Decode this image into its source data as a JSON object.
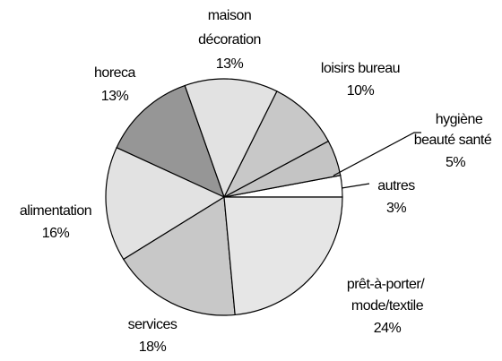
{
  "chart_data": {
    "type": "pie",
    "categories": [
      [
        "autres"
      ],
      [
        "hygiène",
        "beauté santé"
      ],
      [
        "loisirs bureau"
      ],
      [
        "maison",
        "décoration"
      ],
      [
        "horeca"
      ],
      [
        "alimentation"
      ],
      [
        "services"
      ],
      [
        "prêt-à-porter/",
        "mode/textile"
      ]
    ],
    "values": [
      3,
      5,
      10,
      13,
      13,
      16,
      18,
      24
    ],
    "value_labels": [
      "3%",
      "5%",
      "10%",
      "13%",
      "13%",
      "16%",
      "18%",
      "24%"
    ],
    "colors": [
      "#ffffff",
      "#c4c4c4",
      "#c8c8c8",
      "#e2e2e2",
      "#969696",
      "#e2e2e2",
      "#c8c8c8",
      "#e6e6e6"
    ]
  }
}
